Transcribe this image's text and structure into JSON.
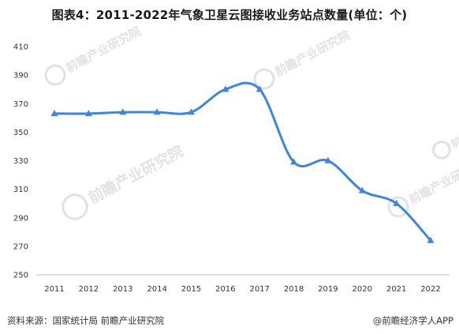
{
  "chart_data": {
    "type": "line",
    "title": "图表4：2011-2022年气象卫星云图接收业务站点数量(单位：个)",
    "x": [
      "2011",
      "2012",
      "2013",
      "2014",
      "2015",
      "2016",
      "2017",
      "2018",
      "2019",
      "2020",
      "2021",
      "2022"
    ],
    "series": [
      {
        "values": [
          363,
          363,
          364,
          364,
          364,
          380,
          380,
          329,
          330,
          309,
          300,
          274
        ]
      }
    ],
    "ylim": [
      250,
      410
    ],
    "yticks": [
      250,
      270,
      290,
      310,
      330,
      350,
      370,
      390,
      410
    ],
    "xlabel": "",
    "ylabel": "",
    "grid": false,
    "legend": "none",
    "line_color": "#3f86d9",
    "smooth": true
  },
  "footer": {
    "source": "资料来源：国家统计局 前瞻产业研究院",
    "brand": "@前瞻经济学人APP"
  },
  "watermark": {
    "text": "前瞻产业研究院"
  }
}
